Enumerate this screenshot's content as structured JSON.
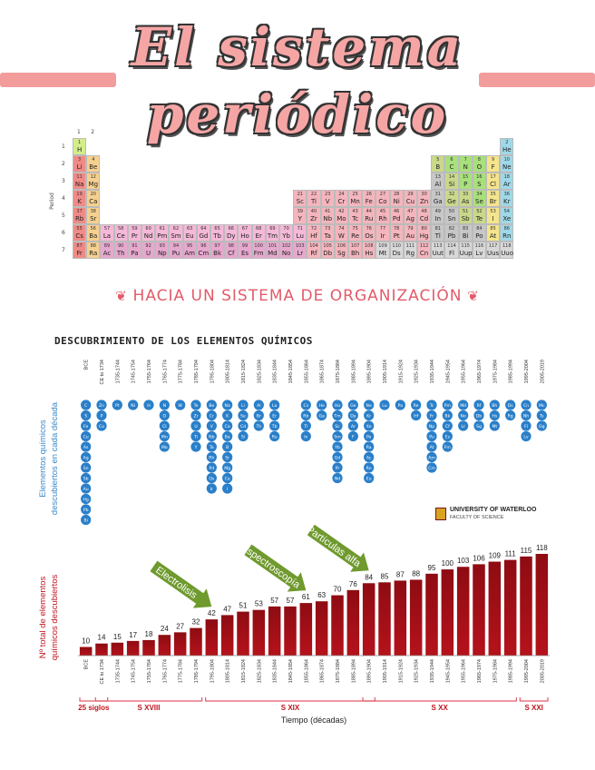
{
  "title": {
    "line1": "El sistema",
    "line2": "periódico"
  },
  "periodic_table": {
    "group_labels": [
      "1",
      "2"
    ],
    "period_axis_label": "Period",
    "period_numbers": [
      "1",
      "2",
      "3",
      "4",
      "5",
      "6",
      "7"
    ],
    "colors": {
      "alkali": "#f08a86",
      "alkaline": "#f6d08e",
      "transition": "#f4b5bd",
      "lanthanide": "#f5b8d8",
      "actinide": "#e7a8cf",
      "post": "#c7c7c7",
      "metalloid": "#c9d88a",
      "nonmetal": "#a8e07b",
      "halogen": "#f4e48c",
      "noble": "#9fd8e8",
      "hydrogen": "#d4ed8a",
      "unknown": "#d8d8d8"
    },
    "elements": [
      {
        "n": 1,
        "s": "H",
        "r": 1,
        "c": 1,
        "t": "hydrogen"
      },
      {
        "n": 2,
        "s": "He",
        "r": 1,
        "c": 18,
        "t": "noble"
      },
      {
        "n": 3,
        "s": "Li",
        "r": 2,
        "c": 1,
        "t": "alkali"
      },
      {
        "n": 4,
        "s": "Be",
        "r": 2,
        "c": 2,
        "t": "alkaline"
      },
      {
        "n": 5,
        "s": "B",
        "r": 2,
        "c": 13,
        "t": "metalloid"
      },
      {
        "n": 6,
        "s": "C",
        "r": 2,
        "c": 14,
        "t": "nonmetal"
      },
      {
        "n": 7,
        "s": "N",
        "r": 2,
        "c": 15,
        "t": "nonmetal"
      },
      {
        "n": 8,
        "s": "O",
        "r": 2,
        "c": 16,
        "t": "nonmetal"
      },
      {
        "n": 9,
        "s": "F",
        "r": 2,
        "c": 17,
        "t": "halogen"
      },
      {
        "n": 10,
        "s": "Ne",
        "r": 2,
        "c": 18,
        "t": "noble"
      },
      {
        "n": 11,
        "s": "Na",
        "r": 3,
        "c": 1,
        "t": "alkali"
      },
      {
        "n": 12,
        "s": "Mg",
        "r": 3,
        "c": 2,
        "t": "alkaline"
      },
      {
        "n": 13,
        "s": "Al",
        "r": 3,
        "c": 13,
        "t": "post"
      },
      {
        "n": 14,
        "s": "Si",
        "r": 3,
        "c": 14,
        "t": "metalloid"
      },
      {
        "n": 15,
        "s": "P",
        "r": 3,
        "c": 15,
        "t": "nonmetal"
      },
      {
        "n": 16,
        "s": "S",
        "r": 3,
        "c": 16,
        "t": "nonmetal"
      },
      {
        "n": 17,
        "s": "Cl",
        "r": 3,
        "c": 17,
        "t": "halogen"
      },
      {
        "n": 18,
        "s": "Ar",
        "r": 3,
        "c": 18,
        "t": "noble"
      },
      {
        "n": 19,
        "s": "K",
        "r": 4,
        "c": 1,
        "t": "alkali"
      },
      {
        "n": 20,
        "s": "Ca",
        "r": 4,
        "c": 2,
        "t": "alkaline"
      },
      {
        "n": 21,
        "s": "Sc",
        "r": 4,
        "c": 3,
        "t": "transition"
      },
      {
        "n": 22,
        "s": "Ti",
        "r": 4,
        "c": 4,
        "t": "transition"
      },
      {
        "n": 23,
        "s": "V",
        "r": 4,
        "c": 5,
        "t": "transition"
      },
      {
        "n": 24,
        "s": "Cr",
        "r": 4,
        "c": 6,
        "t": "transition"
      },
      {
        "n": 25,
        "s": "Mn",
        "r": 4,
        "c": 7,
        "t": "transition"
      },
      {
        "n": 26,
        "s": "Fe",
        "r": 4,
        "c": 8,
        "t": "transition"
      },
      {
        "n": 27,
        "s": "Co",
        "r": 4,
        "c": 9,
        "t": "transition"
      },
      {
        "n": 28,
        "s": "Ni",
        "r": 4,
        "c": 10,
        "t": "transition"
      },
      {
        "n": 29,
        "s": "Cu",
        "r": 4,
        "c": 11,
        "t": "transition"
      },
      {
        "n": 30,
        "s": "Zn",
        "r": 4,
        "c": 12,
        "t": "transition"
      },
      {
        "n": 31,
        "s": "Ga",
        "r": 4,
        "c": 13,
        "t": "post"
      },
      {
        "n": 32,
        "s": "Ge",
        "r": 4,
        "c": 14,
        "t": "metalloid"
      },
      {
        "n": 33,
        "s": "As",
        "r": 4,
        "c": 15,
        "t": "metalloid"
      },
      {
        "n": 34,
        "s": "Se",
        "r": 4,
        "c": 16,
        "t": "nonmetal"
      },
      {
        "n": 35,
        "s": "Br",
        "r": 4,
        "c": 17,
        "t": "halogen"
      },
      {
        "n": 36,
        "s": "Kr",
        "r": 4,
        "c": 18,
        "t": "noble"
      },
      {
        "n": 37,
        "s": "Rb",
        "r": 5,
        "c": 1,
        "t": "alkali"
      },
      {
        "n": 38,
        "s": "Sr",
        "r": 5,
        "c": 2,
        "t": "alkaline"
      },
      {
        "n": 39,
        "s": "Y",
        "r": 5,
        "c": 3,
        "t": "transition"
      },
      {
        "n": 40,
        "s": "Zr",
        "r": 5,
        "c": 4,
        "t": "transition"
      },
      {
        "n": 41,
        "s": "Nb",
        "r": 5,
        "c": 5,
        "t": "transition"
      },
      {
        "n": 42,
        "s": "Mo",
        "r": 5,
        "c": 6,
        "t": "transition"
      },
      {
        "n": 43,
        "s": "Tc",
        "r": 5,
        "c": 7,
        "t": "transition"
      },
      {
        "n": 44,
        "s": "Ru",
        "r": 5,
        "c": 8,
        "t": "transition"
      },
      {
        "n": 45,
        "s": "Rh",
        "r": 5,
        "c": 9,
        "t": "transition"
      },
      {
        "n": 46,
        "s": "Pd",
        "r": 5,
        "c": 10,
        "t": "transition"
      },
      {
        "n": 47,
        "s": "Ag",
        "r": 5,
        "c": 11,
        "t": "transition"
      },
      {
        "n": 48,
        "s": "Cd",
        "r": 5,
        "c": 12,
        "t": "transition"
      },
      {
        "n": 49,
        "s": "In",
        "r": 5,
        "c": 13,
        "t": "post"
      },
      {
        "n": 50,
        "s": "Sn",
        "r": 5,
        "c": 14,
        "t": "post"
      },
      {
        "n": 51,
        "s": "Sb",
        "r": 5,
        "c": 15,
        "t": "metalloid"
      },
      {
        "n": 52,
        "s": "Te",
        "r": 5,
        "c": 16,
        "t": "metalloid"
      },
      {
        "n": 53,
        "s": "I",
        "r": 5,
        "c": 17,
        "t": "halogen"
      },
      {
        "n": 54,
        "s": "Xe",
        "r": 5,
        "c": 18,
        "t": "noble"
      },
      {
        "n": 55,
        "s": "Cs",
        "r": 6,
        "c": 1,
        "t": "alkali"
      },
      {
        "n": 56,
        "s": "Ba",
        "r": 6,
        "c": 2,
        "t": "alkaline"
      },
      {
        "n": 57,
        "s": "La",
        "r": 6,
        "c": 3,
        "t": "lanthanide"
      },
      {
        "n": 58,
        "s": "Ce",
        "r": 6,
        "c": 4,
        "t": "lanthanide"
      },
      {
        "n": 59,
        "s": "Pr",
        "r": 6,
        "c": 5,
        "t": "lanthanide"
      },
      {
        "n": 60,
        "s": "Nd",
        "r": 6,
        "c": 6,
        "t": "lanthanide"
      },
      {
        "n": 61,
        "s": "Pm",
        "r": 6,
        "c": 7,
        "t": "lanthanide"
      },
      {
        "n": 62,
        "s": "Sm",
        "r": 6,
        "c": 8,
        "t": "lanthanide"
      },
      {
        "n": 63,
        "s": "Eu",
        "r": 6,
        "c": 9,
        "t": "lanthanide"
      },
      {
        "n": 64,
        "s": "Gd",
        "r": 6,
        "c": 10,
        "t": "lanthanide"
      },
      {
        "n": 65,
        "s": "Tb",
        "r": 6,
        "c": 11,
        "t": "lanthanide"
      },
      {
        "n": 66,
        "s": "Dy",
        "r": 6,
        "c": 12,
        "t": "lanthanide"
      },
      {
        "n": 67,
        "s": "Ho",
        "r": 6,
        "c": 13,
        "t": "lanthanide"
      },
      {
        "n": 68,
        "s": "Er",
        "r": 6,
        "c": 14,
        "t": "lanthanide"
      },
      {
        "n": 69,
        "s": "Tm",
        "r": 6,
        "c": 15,
        "t": "lanthanide"
      },
      {
        "n": 70,
        "s": "Yb",
        "r": 6,
        "c": 16,
        "t": "lanthanide"
      },
      {
        "n": 71,
        "s": "Lu",
        "r": 6,
        "c": 17,
        "t": "lanthanide"
      },
      {
        "n": 72,
        "s": "Hf",
        "r": 6,
        "c": 18,
        "t": "transition"
      },
      {
        "n": 73,
        "s": "Ta",
        "r": 6,
        "c": 19,
        "t": "transition"
      },
      {
        "n": 74,
        "s": "W",
        "r": 6,
        "c": 20,
        "t": "transition"
      },
      {
        "n": 75,
        "s": "Re",
        "r": 6,
        "c": 21,
        "t": "transition"
      },
      {
        "n": 76,
        "s": "Os",
        "r": 6,
        "c": 22,
        "t": "transition"
      },
      {
        "n": 77,
        "s": "Ir",
        "r": 6,
        "c": 23,
        "t": "transition"
      },
      {
        "n": 78,
        "s": "Pt",
        "r": 6,
        "c": 24,
        "t": "transition"
      },
      {
        "n": 79,
        "s": "Au",
        "r": 6,
        "c": 25,
        "t": "transition"
      },
      {
        "n": 80,
        "s": "Hg",
        "r": 6,
        "c": 26,
        "t": "transition"
      },
      {
        "n": 81,
        "s": "Tl",
        "r": 6,
        "c": 27,
        "t": "post"
      },
      {
        "n": 82,
        "s": "Pb",
        "r": 6,
        "c": 28,
        "t": "post"
      },
      {
        "n": 83,
        "s": "Bi",
        "r": 6,
        "c": 29,
        "t": "post"
      },
      {
        "n": 84,
        "s": "Po",
        "r": 6,
        "c": 30,
        "t": "post"
      },
      {
        "n": 85,
        "s": "At",
        "r": 6,
        "c": 31,
        "t": "halogen"
      },
      {
        "n": 86,
        "s": "Rn",
        "r": 6,
        "c": 32,
        "t": "noble"
      },
      {
        "n": 87,
        "s": "Fr",
        "r": 7,
        "c": 1,
        "t": "alkali"
      },
      {
        "n": 88,
        "s": "Ra",
        "r": 7,
        "c": 2,
        "t": "alkaline"
      },
      {
        "n": 89,
        "s": "Ac",
        "r": 7,
        "c": 3,
        "t": "actinide"
      },
      {
        "n": 90,
        "s": "Th",
        "r": 7,
        "c": 4,
        "t": "actinide"
      },
      {
        "n": 91,
        "s": "Pa",
        "r": 7,
        "c": 5,
        "t": "actinide"
      },
      {
        "n": 92,
        "s": "U",
        "r": 7,
        "c": 6,
        "t": "actinide"
      },
      {
        "n": 93,
        "s": "Np",
        "r": 7,
        "c": 7,
        "t": "actinide"
      },
      {
        "n": 94,
        "s": "Pu",
        "r": 7,
        "c": 8,
        "t": "actinide"
      },
      {
        "n": 95,
        "s": "Am",
        "r": 7,
        "c": 9,
        "t": "actinide"
      },
      {
        "n": 96,
        "s": "Cm",
        "r": 7,
        "c": 10,
        "t": "actinide"
      },
      {
        "n": 97,
        "s": "Bk",
        "r": 7,
        "c": 11,
        "t": "actinide"
      },
      {
        "n": 98,
        "s": "Cf",
        "r": 7,
        "c": 12,
        "t": "actinide"
      },
      {
        "n": 99,
        "s": "Es",
        "r": 7,
        "c": 13,
        "t": "actinide"
      },
      {
        "n": 100,
        "s": "Fm",
        "r": 7,
        "c": 14,
        "t": "actinide"
      },
      {
        "n": 101,
        "s": "Md",
        "r": 7,
        "c": 15,
        "t": "actinide"
      },
      {
        "n": 102,
        "s": "No",
        "r": 7,
        "c": 16,
        "t": "actinide"
      },
      {
        "n": 103,
        "s": "Lr",
        "r": 7,
        "c": 17,
        "t": "actinide"
      },
      {
        "n": 104,
        "s": "Rf",
        "r": 7,
        "c": 18,
        "t": "transition"
      },
      {
        "n": 105,
        "s": "Db",
        "r": 7,
        "c": 19,
        "t": "transition"
      },
      {
        "n": 106,
        "s": "Sg",
        "r": 7,
        "c": 20,
        "t": "transition"
      },
      {
        "n": 107,
        "s": "Bh",
        "r": 7,
        "c": 21,
        "t": "transition"
      },
      {
        "n": 108,
        "s": "Hs",
        "r": 7,
        "c": 22,
        "t": "transition"
      },
      {
        "n": 109,
        "s": "Mt",
        "r": 7,
        "c": 23,
        "t": "unknown"
      },
      {
        "n": 110,
        "s": "Ds",
        "r": 7,
        "c": 24,
        "t": "unknown"
      },
      {
        "n": 111,
        "s": "Rg",
        "r": 7,
        "c": 25,
        "t": "unknown"
      },
      {
        "n": 112,
        "s": "Cn",
        "r": 7,
        "c": 26,
        "t": "transition"
      },
      {
        "n": 113,
        "s": "Uut",
        "r": 7,
        "c": 27,
        "t": "unknown"
      },
      {
        "n": 114,
        "s": "Fl",
        "r": 7,
        "c": 28,
        "t": "unknown"
      },
      {
        "n": 115,
        "s": "Uup",
        "r": 7,
        "c": 29,
        "t": "unknown"
      },
      {
        "n": 116,
        "s": "Lv",
        "r": 7,
        "c": 30,
        "t": "unknown"
      },
      {
        "n": 117,
        "s": "Uus",
        "r": 7,
        "c": 31,
        "t": "unknown"
      },
      {
        "n": 118,
        "s": "Uuo",
        "r": 7,
        "c": 32,
        "t": "unknown"
      }
    ]
  },
  "subtitle": "HACIA UN SISTEMA DE ORGANIZACIÓN",
  "section_heading": "DESCUBRIMIENTO DE LOS ELEMENTOS QUÍMICOS",
  "logo": {
    "line1": "UNIVERSITY OF WATERLOO",
    "line2": "FACULTY OF SCIENCE"
  },
  "colors": {
    "accent": "#e25b6a",
    "bar": "#b5121b",
    "bar_top": "#8e0c12",
    "hex": "#2a7fc9",
    "arrow": "#6f9a2e",
    "hex_label": "#3a87c8",
    "bar_label": "#c0141e"
  },
  "chart_data": {
    "type": "bar",
    "categories": [
      "BCE",
      "CE to 1734",
      "1735-1744",
      "1745-1754",
      "1755-1764",
      "1765-1774",
      "1775-1784",
      "1785-1794",
      "1795-1804",
      "1805-1814",
      "1815-1824",
      "1825-1834",
      "1835-1844",
      "1845-1854",
      "1855-1864",
      "1865-1874",
      "1875-1884",
      "1885-1894",
      "1895-1904",
      "1905-1914",
      "1915-1924",
      "1925-1934",
      "1935-1944",
      "1945-1954",
      "1955-1964",
      "1965-1974",
      "1975-1984",
      "1985-1994",
      "1995-2004",
      "2005-2019"
    ],
    "values": [
      10,
      14,
      15,
      17,
      18,
      24,
      27,
      32,
      42,
      47,
      51,
      53,
      57,
      57,
      61,
      63,
      70,
      76,
      84,
      85,
      87,
      88,
      95,
      100,
      103,
      106,
      109,
      111,
      115,
      118
    ],
    "xlabel": "Tiempo (décadas)",
    "ylabel": "Nº total de elementos químicos descubiertos",
    "hex_axis_label": "Elementos químicos descubiertos en cada década",
    "discovered": [
      [
        "C",
        "S",
        "Fe",
        "Cu",
        "As",
        "Ag",
        "Sn",
        "Sb",
        "Au",
        "Hg",
        "Pb",
        "Bi"
      ],
      [
        "Zn",
        "P",
        "Co"
      ],
      [
        "Pt"
      ],
      [
        "Ni"
      ],
      [
        "H"
      ],
      [
        "N",
        "O",
        "Cl",
        "Mn",
        "Mo"
      ],
      [
        "W"
      ],
      [
        "Te",
        "Zr",
        "U",
        "Ti",
        "Y"
      ],
      [
        "Be",
        "Cr",
        "V",
        "Nb",
        "Ta",
        "Rh",
        "Pd",
        "Os",
        "Ir"
      ],
      [
        "Na",
        "K",
        "Ca",
        "Ba",
        "B",
        "Sr",
        "Mg",
        "Ce",
        "I"
      ],
      [
        "Li",
        "Se",
        "Cd",
        "Si"
      ],
      [
        "Al",
        "Br",
        "Th"
      ],
      [
        "La",
        "Er",
        "Tb",
        "Ru"
      ],
      [],
      [
        "Cs",
        "Rb",
        "Tl",
        "In"
      ],
      [
        "He",
        "Ga"
      ],
      [
        "Ho",
        "Tm",
        "Sc",
        "Sm",
        "Yb",
        "Gd",
        "Pr",
        "Nd"
      ],
      [
        "Ge",
        "Dy",
        "Ar",
        "F"
      ],
      [
        "Ne",
        "Kr",
        "Xe",
        "Po",
        "Ra",
        "Ac",
        "Rn",
        "Eu"
      ],
      [
        "Lu"
      ],
      [
        "Pa"
      ],
      [
        "Re",
        "Hf"
      ],
      [
        "Tc",
        "Fr",
        "Np",
        "Pu",
        "At",
        "Am",
        "Cm"
      ],
      [
        "Pm",
        "Bk",
        "Cf",
        "Es",
        "Fm"
      ],
      [
        "Md",
        "No",
        "Lr"
      ],
      [
        "Rf",
        "Db",
        "Sg"
      ],
      [
        "Bh",
        "Hs",
        "Mt"
      ],
      [
        "Ds",
        "Rg"
      ],
      [
        "Cn",
        "Nh",
        "Fl",
        "Lv"
      ],
      [
        "Mc",
        "Ts",
        "Og"
      ]
    ],
    "arrows": [
      {
        "label": "Electrolisis",
        "at_category": "1795-1804"
      },
      {
        "label": "Espectroscopía",
        "at_category": "1855-1864"
      },
      {
        "label": "Partículas alfa",
        "at_category": "1895-1904"
      }
    ],
    "eras": [
      {
        "label": "25 siglos",
        "from": 0,
        "to": 1
      },
      {
        "label": "S XVIII",
        "from": 1,
        "to": 7
      },
      {
        "label": "S XIX",
        "from": 8,
        "to": 18
      },
      {
        "label": "S XX",
        "from": 18,
        "to": 27
      },
      {
        "label": "S XXI",
        "from": 28,
        "to": 29
      }
    ]
  }
}
